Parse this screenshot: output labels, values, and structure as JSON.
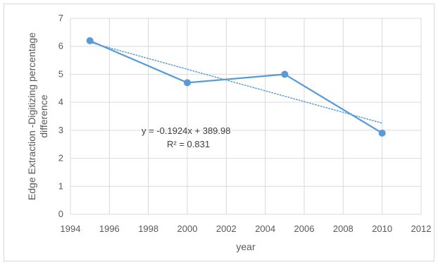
{
  "chart_data": {
    "type": "scatter",
    "title": "",
    "xlabel": "year",
    "ylabel_lines": [
      "Edge Extraction -Digitizing percentage",
      "difference"
    ],
    "xlim": [
      1994,
      2012
    ],
    "ylim": [
      0,
      7
    ],
    "xticks": [
      1994,
      1996,
      1998,
      2000,
      2002,
      2004,
      2006,
      2008,
      2010,
      2012
    ],
    "yticks": [
      0,
      1,
      2,
      3,
      4,
      5,
      6,
      7
    ],
    "grid": true,
    "legend": "none",
    "series": [
      {
        "x": [
          1995,
          2000,
          2005,
          2010
        ],
        "y": [
          6.2,
          4.7,
          5.0,
          2.9
        ],
        "color": "#5b9bd5",
        "lines": true,
        "markers": true
      }
    ],
    "trendline": {
      "kind": "linear",
      "slope": -0.1924,
      "intercept": 389.98,
      "x_range": [
        1995,
        2010
      ],
      "style": "dotted",
      "color": "#5b9bd5"
    },
    "annotations": [
      "y = -0.1924x + 389.98",
      "R² = 0.831"
    ]
  }
}
